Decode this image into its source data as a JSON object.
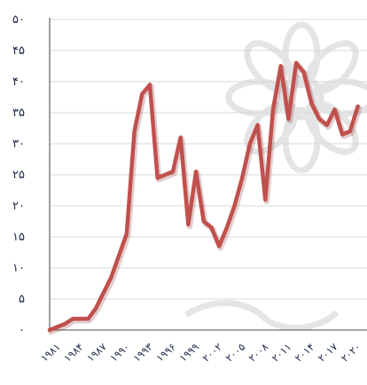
{
  "chart_data": {
    "type": "line",
    "title": "",
    "xlabel": "",
    "ylabel": "",
    "ylim": [
      0,
      50
    ],
    "y_ticks": [
      0,
      5,
      10,
      15,
      20,
      25,
      30,
      35,
      40,
      45,
      50
    ],
    "y_tick_labels": [
      "۰",
      "۵",
      "۱۰",
      "۱۵",
      "۲۰",
      "۲۵",
      "۳۰",
      "۳۵",
      "۴۰",
      "۴۵",
      "۵۰"
    ],
    "x_tick_labels": [
      "۱۹۸۱",
      "۱۹۸۴",
      "۱۹۸۷",
      "۱۹۹۰",
      "۱۹۹۳",
      "۱۹۹۶",
      "۱۹۹۹",
      "۲۰۰۲",
      "۲۰۰۵",
      "۲۰۰۸",
      "۲۰۱۱",
      "۲۰۱۴",
      "۲۰۱۷",
      "۲۰۲۰"
    ],
    "grid": "horizontal",
    "line_color": "#c0504d",
    "series": [
      {
        "x": [
          1980,
          1981,
          1982,
          1983,
          1984,
          1985,
          1986,
          1987,
          1988,
          1989,
          1990,
          1991,
          1992,
          1993,
          1994,
          1995,
          1996,
          1997,
          1998,
          1999,
          2000,
          2001,
          2002,
          2003,
          2004,
          2005,
          2006,
          2007,
          2008,
          2009,
          2010,
          2011,
          2012,
          2013,
          2014,
          2015,
          2016,
          2017,
          2018,
          2019,
          2020
        ],
        "values": [
          0,
          0.5,
          1,
          1.8,
          1.8,
          1.8,
          3.5,
          6,
          8.5,
          12,
          15.5,
          32,
          38,
          39.5,
          24.5,
          25,
          25.5,
          31,
          17,
          25.5,
          17.5,
          16.5,
          13.5,
          16.5,
          20,
          24.5,
          30,
          33,
          21,
          35.5,
          42.5,
          34,
          43,
          41.5,
          36.5,
          34,
          33,
          35.5,
          31.5,
          32,
          36
        ]
      }
    ]
  }
}
